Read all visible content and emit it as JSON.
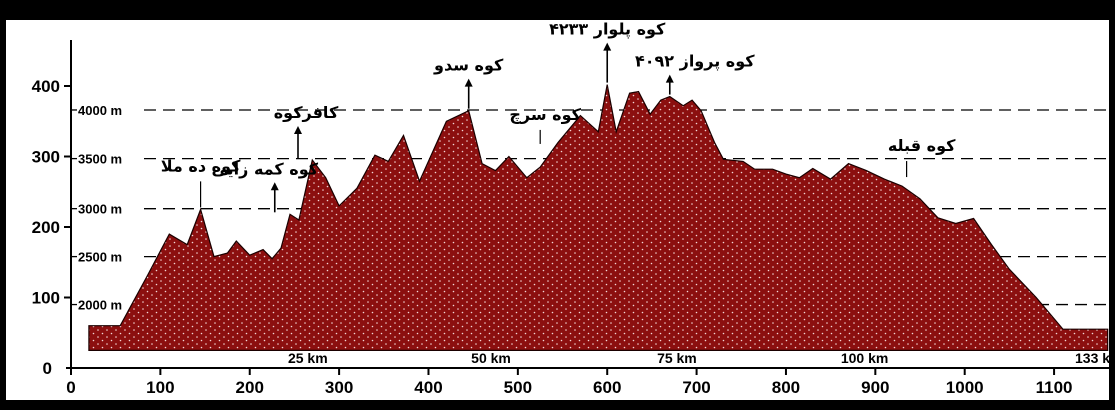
{
  "chart_data": {
    "type": "area",
    "title": "",
    "xlabel": "",
    "ylabel": "",
    "xlim": [
      0,
      1170
    ],
    "ylim": [
      0,
      460
    ],
    "x_ticks": [
      "0",
      "100",
      "200",
      "300",
      "400",
      "500",
      "600",
      "700",
      "800",
      "900",
      "1000",
      "1100"
    ],
    "y_ticks": [
      "100",
      "200",
      "300",
      "400"
    ],
    "elevation_lines": [
      {
        "label": "2000 m",
        "y": 90
      },
      {
        "label": "2500 m",
        "y": 158
      },
      {
        "label": "3000 m",
        "y": 226
      },
      {
        "label": "3500 m",
        "y": 297
      },
      {
        "label": "4000 m",
        "y": 366
      }
    ],
    "distance_labels": [
      {
        "label": "25 km",
        "x": 265
      },
      {
        "label": "50 km",
        "x": 470
      },
      {
        "label": "75 km",
        "x": 678
      },
      {
        "label": "100 km",
        "x": 888
      },
      {
        "label": "133 km",
        "x": 1150
      }
    ],
    "base": 25,
    "fill_color": "#8b0f0f",
    "profile": {
      "x": [
        20,
        55,
        85,
        110,
        130,
        145,
        160,
        175,
        185,
        200,
        215,
        225,
        235,
        245,
        255,
        270,
        285,
        300,
        320,
        340,
        355,
        372,
        390,
        420,
        445,
        460,
        475,
        490,
        510,
        525,
        545,
        570,
        590,
        600,
        610,
        625,
        635,
        648,
        660,
        670,
        685,
        695,
        705,
        720,
        730,
        752,
        765,
        785,
        800,
        815,
        830,
        850,
        870,
        890,
        910,
        930,
        950,
        970,
        990,
        1010,
        1030,
        1050,
        1080,
        1110,
        1140,
        1150,
        1160
      ],
      "y": [
        60,
        60,
        130,
        190,
        175,
        225,
        158,
        163,
        180,
        160,
        168,
        155,
        170,
        218,
        210,
        295,
        270,
        230,
        255,
        302,
        293,
        330,
        265,
        350,
        365,
        290,
        280,
        300,
        270,
        285,
        320,
        358,
        335,
        402,
        335,
        390,
        392,
        360,
        380,
        385,
        372,
        380,
        365,
        320,
        296,
        293,
        282,
        282,
        275,
        270,
        283,
        268,
        290,
        280,
        268,
        258,
        240,
        213,
        205,
        212,
        175,
        140,
        100,
        55,
        55,
        55,
        55
      ]
    },
    "peaks": [
      {
        "label": "کوه ده ملا",
        "x": 145,
        "peak_y": 225,
        "arrow": false
      },
      {
        "label": "کوه کمه زایی",
        "x": 228,
        "peak_y": 218,
        "arrow": true
      },
      {
        "label": "کافرکوه",
        "x": 254,
        "peak_y": 295,
        "arrow": true
      },
      {
        "label": "کوه سدو",
        "x": 445,
        "peak_y": 365,
        "arrow": true
      },
      {
        "label": "کوه سرچ",
        "x": 525,
        "peak_y": 315,
        "arrow": false
      },
      {
        "label": "کوه پلوار ۴۲۳۳",
        "x": 600,
        "peak_y": 402,
        "arrow": true
      },
      {
        "label": "کوه پرواز ۴۰۹۲",
        "x": 670,
        "peak_y": 385,
        "arrow": true
      },
      {
        "label": "کوه قبله",
        "x": 935,
        "peak_y": 268,
        "arrow": false
      }
    ]
  }
}
